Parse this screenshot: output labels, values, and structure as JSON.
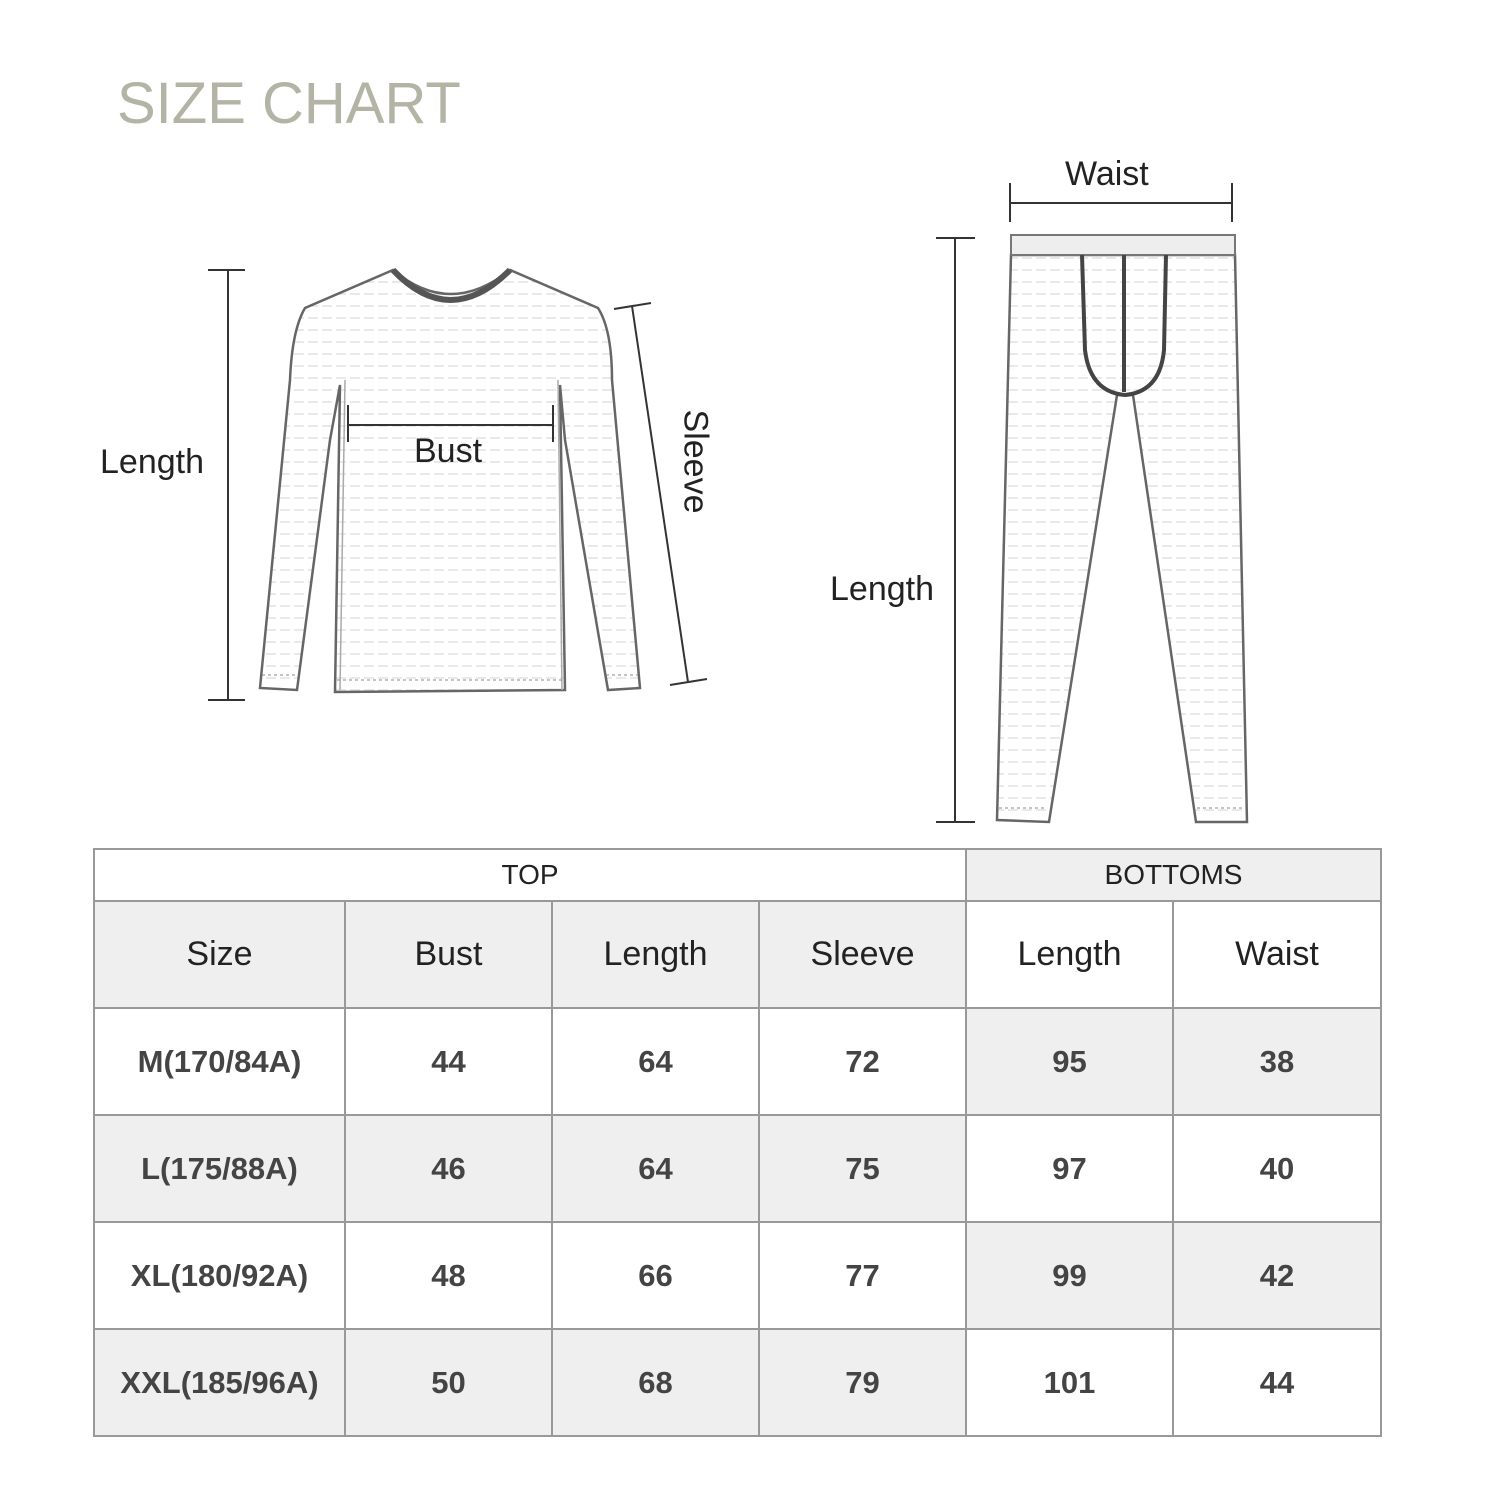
{
  "title": "SIZE CHART",
  "diagram_labels": {
    "top_length": "Length",
    "bust": "Bust",
    "sleeve": "Sleeve",
    "waist": "Waist",
    "bottom_length": "Length"
  },
  "table": {
    "groups": [
      "TOP",
      "BOTTOMS"
    ],
    "headers": [
      "Size",
      "Bust",
      "Length",
      "Sleeve",
      "Length",
      "Waist"
    ],
    "rows": [
      [
        "M(170/84A)",
        "44",
        "64",
        "72",
        "95",
        "38"
      ],
      [
        "L(175/88A)",
        "46",
        "64",
        "75",
        "97",
        "40"
      ],
      [
        "XL(180/92A)",
        "48",
        "66",
        "77",
        "99",
        "42"
      ],
      [
        "XXL(185/96A)",
        "50",
        "68",
        "79",
        "101",
        "44"
      ]
    ]
  },
  "colors": {
    "title": "#b3b3a6",
    "cell_shade": "#efefef",
    "grid": "#999999"
  }
}
